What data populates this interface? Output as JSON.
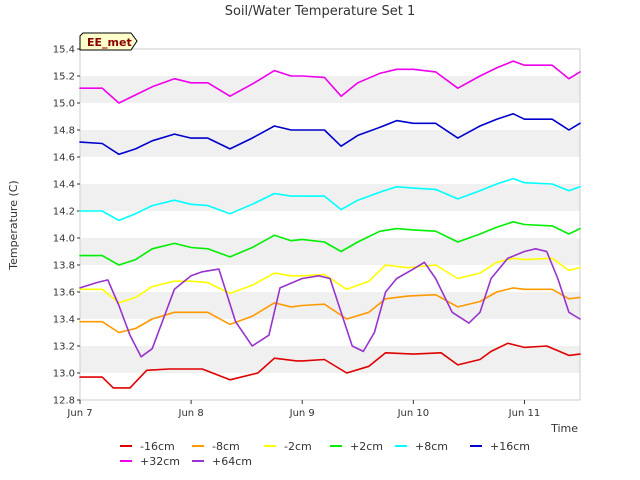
{
  "chart_data": {
    "type": "line",
    "title": "Soil/Water Temperature Set 1",
    "xlabel": "Time",
    "ylabel": "Temperature (C)",
    "ylim": [
      12.8,
      15.4
    ],
    "yticks": [
      "12.8",
      "13.0",
      "13.2",
      "13.4",
      "13.6",
      "13.8",
      "14.0",
      "14.2",
      "14.4",
      "14.6",
      "14.8",
      "15.0",
      "15.2",
      "15.4"
    ],
    "xlim": [
      0,
      4.5
    ],
    "xticks": [
      {
        "value": 0,
        "label": "Jun 7"
      },
      {
        "value": 1,
        "label": "Jun 8"
      },
      {
        "value": 2,
        "label": "Jun 9"
      },
      {
        "value": 3,
        "label": "Jun 10"
      },
      {
        "value": 4,
        "label": "Jun 11"
      }
    ],
    "site_label": "EE_met",
    "legend_position": "bottom",
    "series": [
      {
        "name": "-16cm",
        "color": "#e00000",
        "x": [
          0,
          0.2,
          0.3,
          0.45,
          0.6,
          0.8,
          1.0,
          1.1,
          1.35,
          1.6,
          1.75,
          1.95,
          2.0,
          2.2,
          2.4,
          2.6,
          2.75,
          3.0,
          3.25,
          3.4,
          3.6,
          3.7,
          3.85,
          4.0,
          4.2,
          4.4,
          4.5
        ],
        "values": [
          12.97,
          12.97,
          12.89,
          12.89,
          13.02,
          13.03,
          13.03,
          13.03,
          12.95,
          13.0,
          13.11,
          13.09,
          13.09,
          13.1,
          13.0,
          13.05,
          13.15,
          13.14,
          13.15,
          13.06,
          13.1,
          13.16,
          13.22,
          13.19,
          13.2,
          13.13,
          13.14
        ]
      },
      {
        "name": "-8cm",
        "color": "#ff9900",
        "x": [
          0,
          0.2,
          0.35,
          0.5,
          0.65,
          0.85,
          1.0,
          1.15,
          1.35,
          1.55,
          1.75,
          1.9,
          2.0,
          2.2,
          2.4,
          2.6,
          2.75,
          2.95,
          3.2,
          3.4,
          3.6,
          3.75,
          3.9,
          4.0,
          4.25,
          4.4,
          4.5
        ],
        "values": [
          13.38,
          13.38,
          13.3,
          13.33,
          13.4,
          13.45,
          13.45,
          13.45,
          13.36,
          13.42,
          13.52,
          13.49,
          13.5,
          13.51,
          13.4,
          13.45,
          13.55,
          13.57,
          13.58,
          13.49,
          13.53,
          13.6,
          13.63,
          13.62,
          13.62,
          13.55,
          13.56
        ]
      },
      {
        "name": "-2cm",
        "color": "#ffff00",
        "x": [
          0,
          0.2,
          0.35,
          0.5,
          0.65,
          0.85,
          1.0,
          1.15,
          1.35,
          1.55,
          1.75,
          1.9,
          2.0,
          2.2,
          2.4,
          2.6,
          2.75,
          2.95,
          3.2,
          3.4,
          3.6,
          3.75,
          3.9,
          4.0,
          4.25,
          4.4,
          4.5
        ],
        "values": [
          13.62,
          13.62,
          13.52,
          13.56,
          13.64,
          13.68,
          13.68,
          13.67,
          13.59,
          13.65,
          13.74,
          13.72,
          13.72,
          13.73,
          13.62,
          13.68,
          13.8,
          13.78,
          13.8,
          13.7,
          13.74,
          13.82,
          13.85,
          13.84,
          13.85,
          13.76,
          13.78
        ]
      },
      {
        "name": "+2cm",
        "color": "#00ee00",
        "x": [
          0,
          0.2,
          0.35,
          0.5,
          0.65,
          0.85,
          1.0,
          1.15,
          1.35,
          1.55,
          1.75,
          1.9,
          2.0,
          2.2,
          2.35,
          2.5,
          2.7,
          2.85,
          3.0,
          3.2,
          3.4,
          3.6,
          3.75,
          3.9,
          4.0,
          4.25,
          4.4,
          4.5
        ],
        "values": [
          13.87,
          13.87,
          13.8,
          13.84,
          13.92,
          13.96,
          13.93,
          13.92,
          13.86,
          13.93,
          14.02,
          13.98,
          13.99,
          13.97,
          13.9,
          13.97,
          14.05,
          14.07,
          14.06,
          14.05,
          13.97,
          14.03,
          14.08,
          14.12,
          14.1,
          14.09,
          14.03,
          14.07
        ]
      },
      {
        "name": "+8cm",
        "color": "#00ffff",
        "x": [
          0,
          0.2,
          0.35,
          0.5,
          0.65,
          0.85,
          1.0,
          1.15,
          1.35,
          1.55,
          1.75,
          1.9,
          2.0,
          2.2,
          2.35,
          2.5,
          2.7,
          2.85,
          3.0,
          3.2,
          3.4,
          3.6,
          3.75,
          3.9,
          4.0,
          4.25,
          4.4,
          4.5
        ],
        "values": [
          14.2,
          14.2,
          14.13,
          14.18,
          14.24,
          14.28,
          14.25,
          14.24,
          14.18,
          14.25,
          14.33,
          14.31,
          14.31,
          14.31,
          14.21,
          14.28,
          14.34,
          14.38,
          14.37,
          14.36,
          14.29,
          14.35,
          14.4,
          14.44,
          14.41,
          14.4,
          14.35,
          14.38
        ]
      },
      {
        "name": "+16cm",
        "color": "#0000cc",
        "x": [
          0,
          0.2,
          0.35,
          0.5,
          0.65,
          0.85,
          1.0,
          1.15,
          1.35,
          1.55,
          1.75,
          1.9,
          2.0,
          2.2,
          2.35,
          2.5,
          2.7,
          2.85,
          3.0,
          3.2,
          3.4,
          3.6,
          3.75,
          3.9,
          4.0,
          4.25,
          4.4,
          4.5
        ],
        "values": [
          14.71,
          14.7,
          14.62,
          14.66,
          14.72,
          14.77,
          14.74,
          14.74,
          14.66,
          14.74,
          14.83,
          14.8,
          14.8,
          14.8,
          14.68,
          14.76,
          14.82,
          14.87,
          14.85,
          14.85,
          14.74,
          14.83,
          14.88,
          14.92,
          14.88,
          14.88,
          14.8,
          14.85
        ]
      },
      {
        "name": "+32cm",
        "color": "#ee00ee",
        "x": [
          0,
          0.2,
          0.35,
          0.5,
          0.65,
          0.85,
          1.0,
          1.15,
          1.35,
          1.55,
          1.75,
          1.9,
          2.0,
          2.2,
          2.35,
          2.5,
          2.7,
          2.85,
          3.0,
          3.2,
          3.4,
          3.6,
          3.75,
          3.9,
          4.0,
          4.25,
          4.4,
          4.5
        ],
        "values": [
          15.11,
          15.11,
          15.0,
          15.06,
          15.12,
          15.18,
          15.15,
          15.15,
          15.05,
          15.14,
          15.24,
          15.2,
          15.2,
          15.19,
          15.05,
          15.15,
          15.22,
          15.25,
          15.25,
          15.23,
          15.11,
          15.2,
          15.26,
          15.31,
          15.28,
          15.28,
          15.18,
          15.23
        ]
      },
      {
        "name": "+64cm",
        "color": "#9933cc",
        "x": [
          0,
          0.15,
          0.25,
          0.35,
          0.45,
          0.55,
          0.65,
          0.75,
          0.85,
          1.0,
          1.1,
          1.25,
          1.4,
          1.55,
          1.7,
          1.8,
          2.0,
          2.15,
          2.25,
          2.35,
          2.45,
          2.55,
          2.65,
          2.75,
          2.85,
          3.0,
          3.1,
          3.2,
          3.35,
          3.5,
          3.6,
          3.7,
          3.85,
          4.0,
          4.1,
          4.2,
          4.3,
          4.4,
          4.5
        ],
        "values": [
          13.63,
          13.67,
          13.69,
          13.5,
          13.28,
          13.12,
          13.18,
          13.4,
          13.62,
          13.72,
          13.75,
          13.77,
          13.38,
          13.2,
          13.28,
          13.63,
          13.7,
          13.72,
          13.7,
          13.45,
          13.2,
          13.16,
          13.3,
          13.6,
          13.7,
          13.77,
          13.82,
          13.7,
          13.45,
          13.37,
          13.45,
          13.7,
          13.85,
          13.9,
          13.92,
          13.9,
          13.7,
          13.45,
          13.4
        ]
      }
    ]
  }
}
